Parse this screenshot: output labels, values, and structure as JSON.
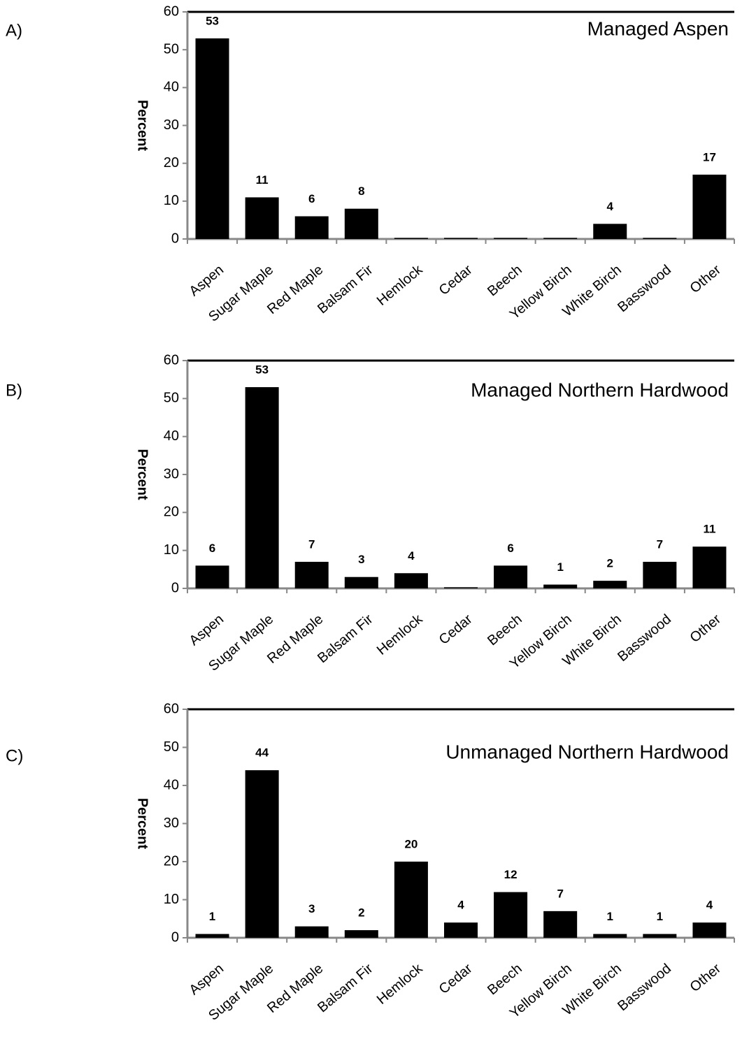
{
  "chart_data": [
    {
      "type": "bar",
      "panel": "A)",
      "title": "Managed Aspen",
      "ylabel": "Percent",
      "categories": [
        "Aspen",
        "Sugar Maple",
        "Red Maple",
        "Balsam Fir",
        "Hemlock",
        "Cedar",
        "Beech",
        "Yellow Birch",
        "White Birch",
        "Basswood",
        "Other"
      ],
      "values": [
        53,
        11,
        6,
        8,
        0.3,
        0.3,
        0.3,
        0.3,
        4,
        0.3,
        17
      ],
      "value_labels": [
        "53",
        "11",
        "6",
        "8",
        null,
        null,
        null,
        null,
        "4",
        null,
        "17"
      ],
      "color": "#000000",
      "ylim": [
        0,
        60
      ],
      "yticks": [
        0,
        10,
        20,
        30,
        40,
        50,
        60
      ]
    },
    {
      "type": "bar",
      "panel": "B)",
      "title": "Managed Northern Hardwood",
      "ylabel": "Percent",
      "categories": [
        "Aspen",
        "Sugar Maple",
        "Red Maple",
        "Balsam Fir",
        "Hemlock",
        "Cedar",
        "Beech",
        "Yellow Birch",
        "White Birch",
        "Basswood",
        "Other"
      ],
      "values": [
        6,
        53,
        7,
        3,
        4,
        0.3,
        6,
        1,
        2,
        7,
        11
      ],
      "value_labels": [
        "6",
        "53",
        "7",
        "3",
        "4",
        null,
        "6",
        "1",
        "2",
        "7",
        "11"
      ],
      "color": "#000000",
      "ylim": [
        0,
        60
      ],
      "yticks": [
        0,
        10,
        20,
        30,
        40,
        50,
        60
      ]
    },
    {
      "type": "bar",
      "panel": "C)",
      "title": "Unmanaged Northern Hardwood",
      "ylabel": "Percent",
      "categories": [
        "Aspen",
        "Sugar Maple",
        "Red Maple",
        "Balsam Fir",
        "Hemlock",
        "Cedar",
        "Beech",
        "Yellow Birch",
        "White Birch",
        "Basswood",
        "Other"
      ],
      "values": [
        1,
        44,
        3,
        2,
        20,
        4,
        12,
        7,
        1,
        1,
        4
      ],
      "color": "#000000",
      "ylim": [
        0,
        60
      ],
      "yticks": [
        0,
        10,
        20,
        30,
        40,
        50,
        60
      ]
    }
  ]
}
